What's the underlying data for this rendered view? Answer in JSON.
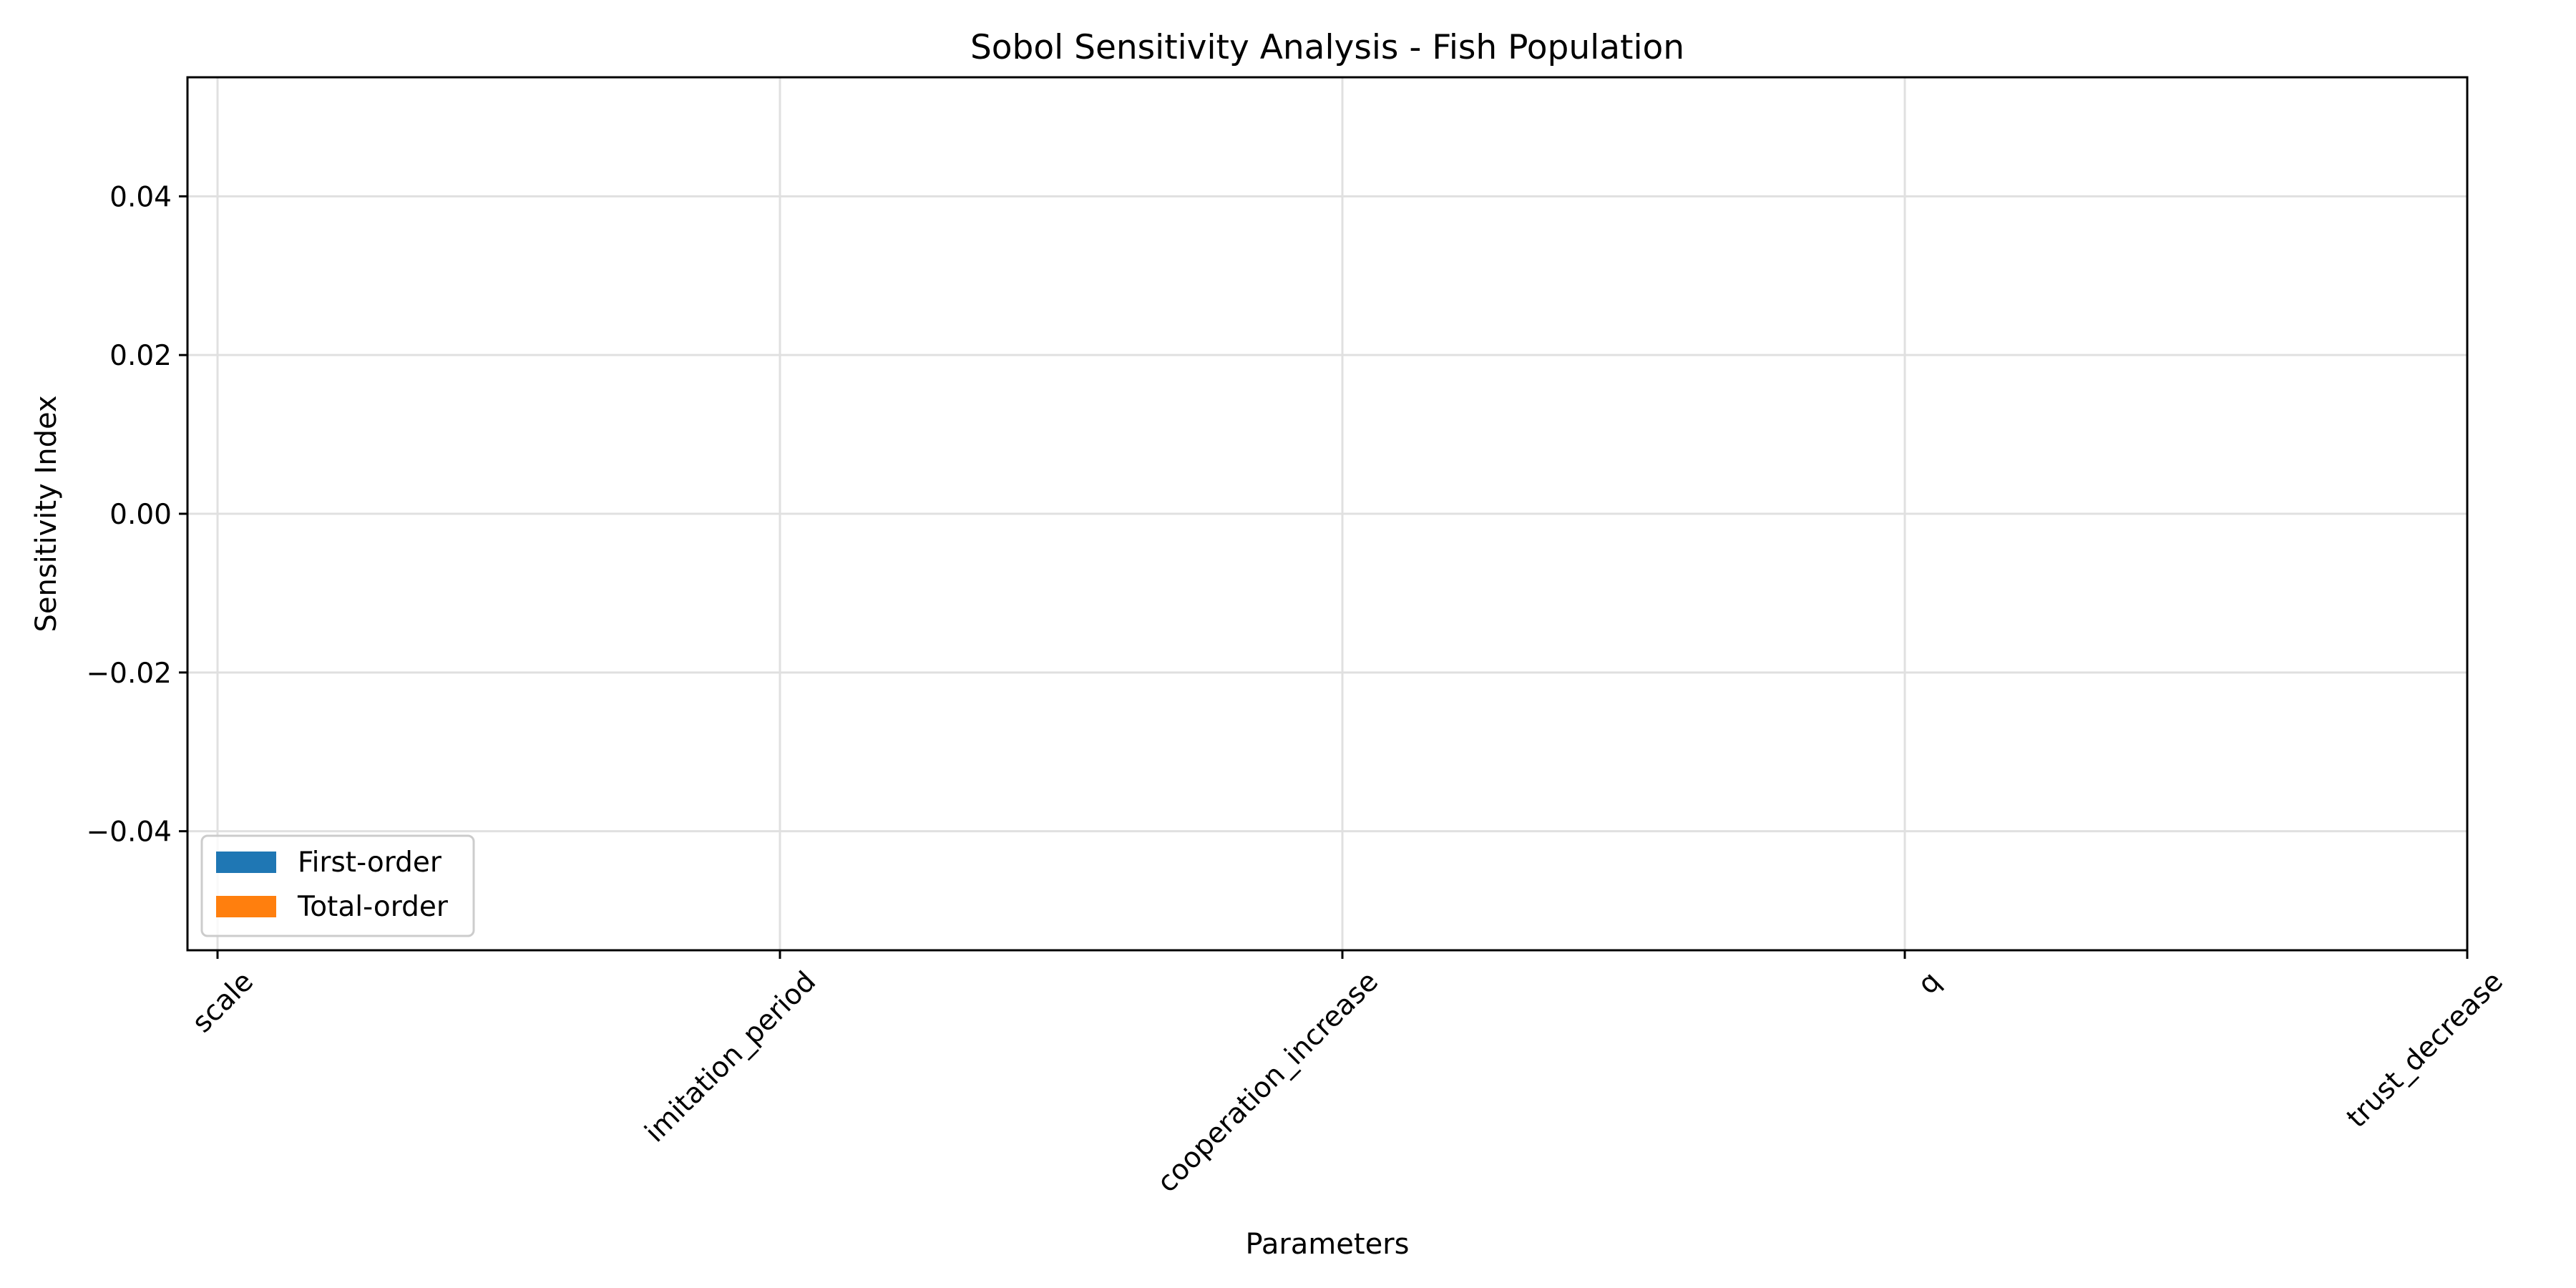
{
  "chart_data": {
    "type": "bar",
    "title": "Sobol Sensitivity Analysis - Fish Population",
    "xlabel": "Parameters",
    "ylabel": "Sensitivity Index",
    "categories": [
      "scale",
      "imitation_period",
      "cooperation_increase",
      "q",
      "trust_decrease"
    ],
    "series": [
      {
        "name": "First-order",
        "color": "#1f77b4",
        "values": [
          0,
          0,
          0,
          0,
          0
        ]
      },
      {
        "name": "Total-order",
        "color": "#ff7f0e",
        "values": [
          0,
          0,
          0,
          0,
          0
        ]
      }
    ],
    "ylim": [
      -0.055,
      0.055
    ],
    "yticks": [
      -0.04,
      -0.02,
      0.0,
      0.02,
      0.04
    ],
    "ytick_labels": [
      "−0.04",
      "−0.02",
      "0.00",
      "0.02",
      "0.04"
    ],
    "grid": true,
    "legend_position": "lower-left"
  }
}
